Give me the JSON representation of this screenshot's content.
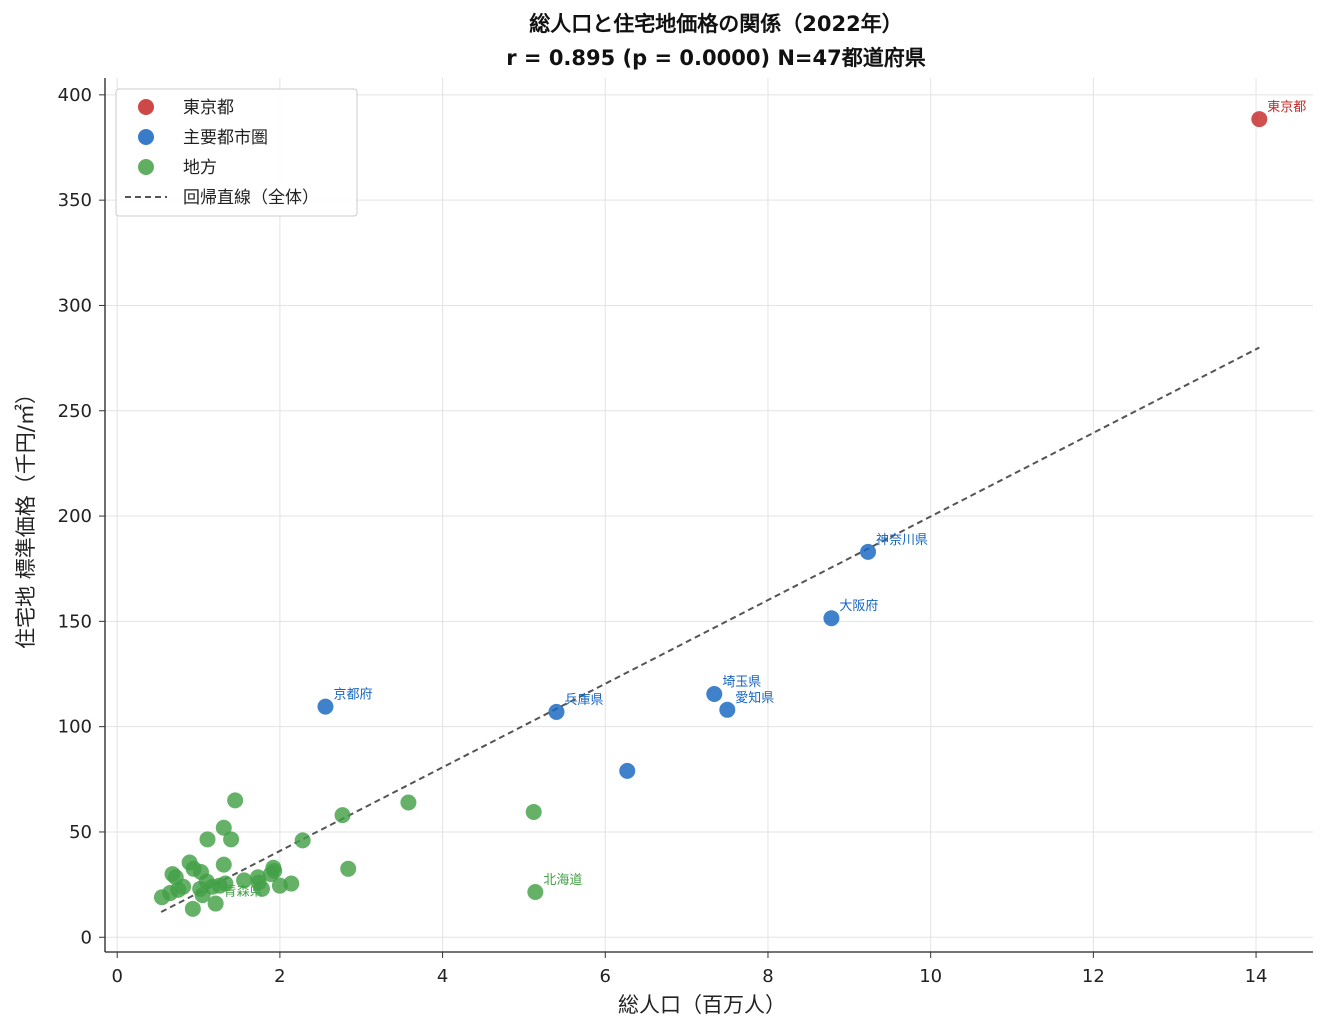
{
  "chart_data": {
    "type": "scatter",
    "title": "総人口と住宅地価格の関係（2022年）",
    "subtitle": "r = 0.895  (p = 0.0000)  N=47都道府県",
    "xlabel": "総人口（百万人）",
    "ylabel": "住宅地 標準価格（千円/㎡）",
    "xlim": [
      -0.15,
      14.7
    ],
    "ylim": [
      -7,
      408
    ],
    "xticks": [
      0,
      2,
      4,
      6,
      8,
      10,
      12,
      14
    ],
    "yticks": [
      0,
      50,
      100,
      150,
      200,
      250,
      300,
      350,
      400
    ],
    "grid": true,
    "legend_position": "top-left",
    "colors": {
      "tokyo": "#c62828",
      "metro": "#1565c0",
      "rural": "#388e3c",
      "regression": "#555555"
    },
    "series": [
      {
        "name": "東京都",
        "color": "#c62828",
        "points": [
          {
            "x": 14.04,
            "y": 388.5,
            "label": "東京都"
          }
        ]
      },
      {
        "name": "主要都市圏",
        "color": "#1565c0",
        "points": [
          {
            "x": 9.23,
            "y": 183,
            "label": "神奈川県"
          },
          {
            "x": 8.78,
            "y": 151.5,
            "label": "大阪府"
          },
          {
            "x": 7.34,
            "y": 115.5,
            "label": "埼玉県"
          },
          {
            "x": 7.5,
            "y": 108,
            "label": "愛知県"
          },
          {
            "x": 5.4,
            "y": 107,
            "label": "兵庫県"
          },
          {
            "x": 2.56,
            "y": 109.5,
            "label": "京都府"
          },
          {
            "x": 6.27,
            "y": 79,
            "label": ""
          }
        ]
      },
      {
        "name": "地方",
        "color": "#43a047",
        "points": [
          {
            "x": 5.14,
            "y": 21.5,
            "label": "北海道"
          },
          {
            "x": 5.12,
            "y": 59.5,
            "label": ""
          },
          {
            "x": 3.58,
            "y": 64,
            "label": ""
          },
          {
            "x": 2.77,
            "y": 58,
            "label": ""
          },
          {
            "x": 2.84,
            "y": 32.5,
            "label": ""
          },
          {
            "x": 2.28,
            "y": 46,
            "label": ""
          },
          {
            "x": 2.14,
            "y": 25.5,
            "label": ""
          },
          {
            "x": 2.0,
            "y": 24.5,
            "label": ""
          },
          {
            "x": 1.93,
            "y": 31.5,
            "label": ""
          },
          {
            "x": 1.89,
            "y": 30,
            "label": ""
          },
          {
            "x": 1.92,
            "y": 33,
            "label": ""
          },
          {
            "x": 1.78,
            "y": 23,
            "label": ""
          },
          {
            "x": 1.73,
            "y": 28.5,
            "label": ""
          },
          {
            "x": 1.74,
            "y": 26,
            "label": ""
          },
          {
            "x": 1.56,
            "y": 27,
            "label": ""
          },
          {
            "x": 1.45,
            "y": 65,
            "label": ""
          },
          {
            "x": 1.4,
            "y": 46.5,
            "label": ""
          },
          {
            "x": 1.31,
            "y": 52,
            "label": ""
          },
          {
            "x": 1.31,
            "y": 34.5,
            "label": ""
          },
          {
            "x": 1.33,
            "y": 25.5,
            "label": ""
          },
          {
            "x": 1.26,
            "y": 24.5,
            "label": ""
          },
          {
            "x": 1.21,
            "y": 16,
            "label": "青森県"
          },
          {
            "x": 1.17,
            "y": 24,
            "label": ""
          },
          {
            "x": 1.11,
            "y": 46.5,
            "label": ""
          },
          {
            "x": 1.1,
            "y": 26.5,
            "label": ""
          },
          {
            "x": 1.05,
            "y": 20,
            "label": ""
          },
          {
            "x": 1.03,
            "y": 31,
            "label": ""
          },
          {
            "x": 1.02,
            "y": 23,
            "label": ""
          },
          {
            "x": 0.93,
            "y": 13.5,
            "label": ""
          },
          {
            "x": 0.89,
            "y": 35.5,
            "label": ""
          },
          {
            "x": 0.94,
            "y": 32.5,
            "label": ""
          },
          {
            "x": 0.81,
            "y": 24,
            "label": ""
          },
          {
            "x": 0.75,
            "y": 22.5,
            "label": ""
          },
          {
            "x": 0.72,
            "y": 28.5,
            "label": ""
          },
          {
            "x": 0.68,
            "y": 30,
            "label": ""
          },
          {
            "x": 0.65,
            "y": 21,
            "label": ""
          },
          {
            "x": 0.55,
            "y": 19,
            "label": ""
          }
        ]
      }
    ],
    "regression": {
      "name": "回帰直線（全体）",
      "x": [
        0.54,
        14.04
      ],
      "y": [
        12,
        280
      ]
    }
  }
}
